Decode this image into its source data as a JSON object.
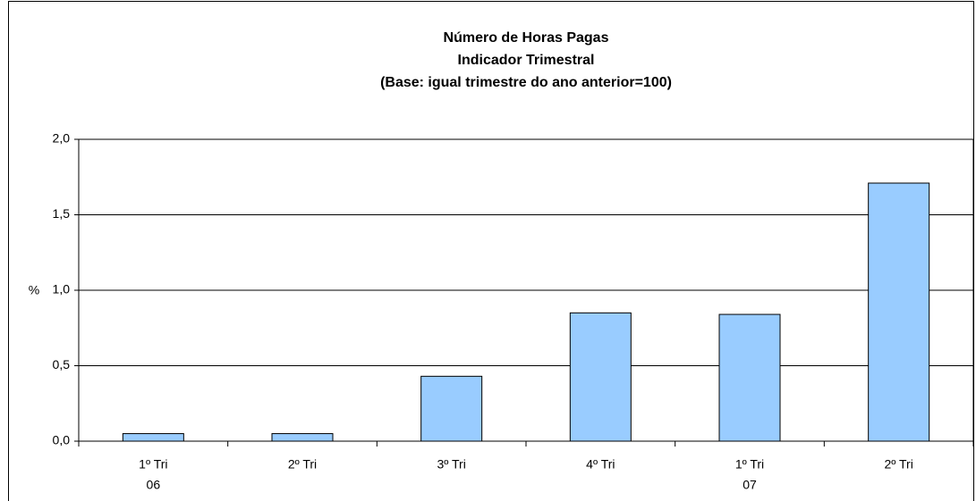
{
  "chart_data": {
    "type": "bar",
    "title": [
      "Número de Horas Pagas",
      "Indicador Trimestral",
      "(Base: igual trimestre do ano anterior=100)"
    ],
    "y_label": "%",
    "categories": [
      "1º Tri",
      "2º Tri",
      "3º Tri",
      "4º Tri",
      "1º Tri",
      "2º Tri"
    ],
    "x_sublabels": [
      "06",
      null,
      null,
      null,
      "07",
      null
    ],
    "values": [
      0.05,
      0.05,
      0.43,
      0.85,
      0.84,
      1.71
    ],
    "color": "#99ccff",
    "ylim": [
      0,
      2
    ],
    "yticks": [
      {
        "value": 0,
        "label": "0,0"
      },
      {
        "value": 0.5,
        "label": "0,5"
      },
      {
        "value": 1,
        "label": "1,0"
      },
      {
        "value": 1.5,
        "label": "1,5"
      },
      {
        "value": 2,
        "label": "2,0"
      }
    ],
    "grid": true
  }
}
